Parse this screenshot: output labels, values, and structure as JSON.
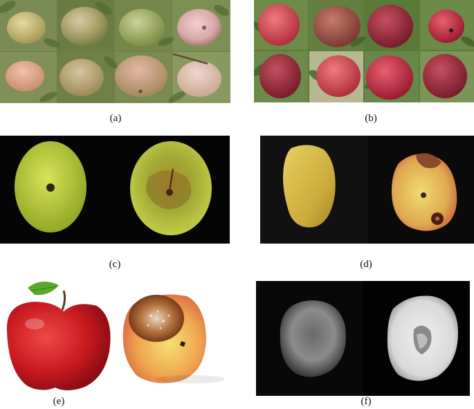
{
  "figure": {
    "panels": [
      {
        "id": "a",
        "caption": "(a)",
        "content": "greenish-pink apples on tree branches, 2x4 grid"
      },
      {
        "id": "b",
        "caption": "(b)",
        "content": "red apples on tree branches, 2x4 grid"
      },
      {
        "id": "c",
        "caption": "(c)",
        "content": "two yellow-green apples on black background, right one with brown rot"
      },
      {
        "id": "d",
        "caption": "(d)",
        "content": "two yellow apples on black background, right one damaged with dark spot"
      },
      {
        "id": "e",
        "caption": "(e)",
        "content": "red apple with leaf and a yellow apple with rotten patch on white"
      },
      {
        "id": "f",
        "caption": "(f)",
        "content": "grayscale images of two apples on black background"
      }
    ]
  }
}
